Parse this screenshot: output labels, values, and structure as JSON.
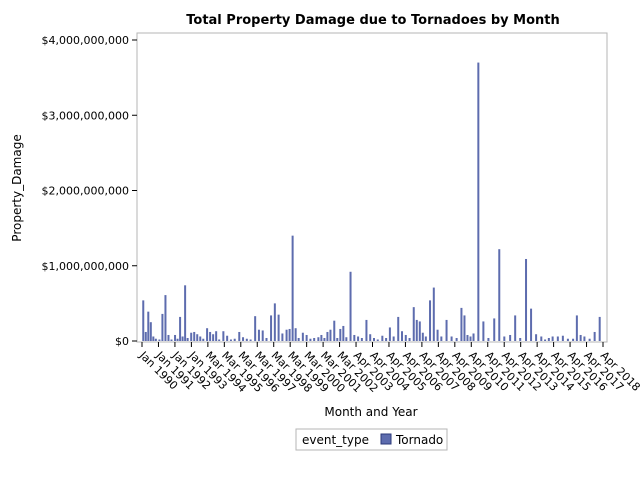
{
  "chart_data": {
    "type": "bar",
    "title": "Total Property Damage due to Tornadoes by Month",
    "xlabel": "Month and Year",
    "ylabel": "Property_Damage",
    "ylim": [
      0,
      4000000000
    ],
    "y_ticks": [
      0,
      1000000000,
      2000000000,
      3000000000,
      4000000000
    ],
    "y_tick_labels": [
      "$0",
      "$1,000,000,000",
      "$2,000,000,000",
      "$3,000,000,000",
      "$4,000,000,000"
    ],
    "x_tick_labels": [
      "Jan 1990",
      "Jan 1991",
      "Jan 1992",
      "Jan 1993",
      "Mar 1994",
      "Mar 1995",
      "Mar 1996",
      "Mar 1997",
      "Mar 1998",
      "Mar 1999",
      "Mar 2000",
      "Mar 2001",
      "Mar 2002",
      "Apr 2003",
      "Apr 2004",
      "Apr 2005",
      "Apr 2006",
      "Apr 2007",
      "Apr 2008",
      "Apr 2009",
      "Apr 2010",
      "Apr 2011",
      "Apr 2012",
      "Apr 2013",
      "Apr 2014",
      "Apr 2015",
      "Apr 2016",
      "Apr 2017",
      "Apr 2018"
    ],
    "grid": false,
    "legend": {
      "title": "event_type",
      "placement": "bottom"
    },
    "series": [
      {
        "name": "Tornado",
        "color": "#5d6cae",
        "bars": [
          {
            "year": 1990,
            "values": [
              540000000,
              120000000,
              390000000,
              250000000,
              60000000,
              30000000
            ]
          },
          {
            "year": 1991,
            "values": [
              20000000,
              360000000,
              610000000,
              80000000,
              20000000
            ]
          },
          {
            "year": 1992,
            "values": [
              80000000,
              30000000,
              320000000,
              60000000,
              740000000,
              40000000
            ]
          },
          {
            "year": 1993,
            "values": [
              110000000,
              120000000,
              90000000,
              60000000,
              30000000
            ]
          },
          {
            "year": 1994,
            "values": [
              170000000,
              120000000,
              90000000,
              130000000,
              20000000
            ]
          },
          {
            "year": 1995,
            "values": [
              130000000,
              70000000,
              20000000,
              30000000
            ]
          },
          {
            "year": 1996,
            "values": [
              120000000,
              50000000,
              30000000,
              20000000
            ]
          },
          {
            "year": 1997,
            "values": [
              330000000,
              150000000,
              140000000,
              40000000
            ]
          },
          {
            "year": 1998,
            "values": [
              340000000,
              500000000,
              350000000,
              100000000
            ]
          },
          {
            "year": 1999,
            "values": [
              150000000,
              160000000,
              1400000000,
              170000000,
              40000000
            ]
          },
          {
            "year": 2000,
            "values": [
              110000000,
              80000000,
              30000000,
              40000000
            ]
          },
          {
            "year": 2001,
            "values": [
              50000000,
              80000000,
              40000000,
              120000000,
              150000000
            ]
          },
          {
            "year": 2002,
            "values": [
              270000000,
              40000000,
              160000000,
              200000000,
              50000000
            ]
          },
          {
            "year": 2003,
            "values": [
              920000000,
              80000000,
              60000000,
              40000000
            ]
          },
          {
            "year": 2004,
            "values": [
              280000000,
              90000000,
              40000000,
              20000000
            ]
          },
          {
            "year": 2005,
            "values": [
              70000000,
              40000000,
              180000000,
              60000000
            ]
          },
          {
            "year": 2006,
            "values": [
              320000000,
              130000000,
              80000000,
              40000000
            ]
          },
          {
            "year": 2007,
            "values": [
              450000000,
              280000000,
              260000000,
              110000000,
              60000000
            ]
          },
          {
            "year": 2008,
            "values": [
              540000000,
              710000000,
              150000000,
              60000000
            ]
          },
          {
            "year": 2009,
            "values": [
              280000000,
              60000000,
              40000000
            ]
          },
          {
            "year": 2010,
            "values": [
              440000000,
              340000000,
              80000000,
              60000000,
              100000000
            ]
          },
          {
            "year": 2011,
            "values": [
              3700000000,
              260000000,
              40000000
            ]
          },
          {
            "year": 2012,
            "values": [
              300000000,
              1220000000,
              60000000
            ]
          },
          {
            "year": 2013,
            "values": [
              80000000,
              340000000,
              40000000
            ]
          },
          {
            "year": 2014,
            "values": [
              1090000000,
              430000000,
              90000000
            ]
          },
          {
            "year": 2015,
            "values": [
              60000000,
              20000000,
              40000000,
              60000000
            ]
          },
          {
            "year": 2016,
            "values": [
              60000000,
              70000000,
              30000000
            ]
          },
          {
            "year": 2017,
            "values": [
              30000000,
              340000000,
              80000000,
              60000000
            ]
          },
          {
            "year": 2018,
            "values": [
              30000000,
              120000000,
              320000000
            ]
          }
        ]
      }
    ]
  }
}
